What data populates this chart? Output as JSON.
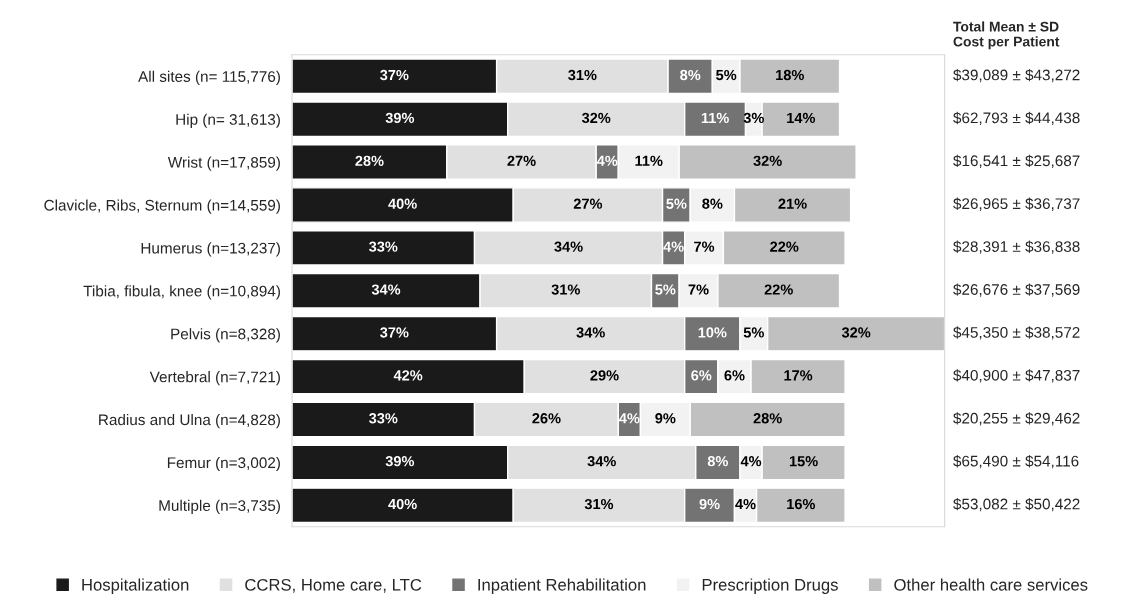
{
  "chart_data": {
    "type": "bar",
    "orientation": "horizontal",
    "stacked": true,
    "legend": "bottom",
    "marker": "square",
    "grid": false,
    "categories": [
      "All sites (n= 115,776)",
      "Hip (n= 31,613)",
      "Wrist (n=17,859)",
      "Clavicle, Ribs, Sternum (n=14,559)",
      "Humerus (n=13,237)",
      "Tibia, fibula, knee (n=10,894)",
      "Pelvis (n=8,328)",
      "Vertebral (n=7,721)",
      "Radius and Ulna (n=4,828)",
      "Femur (n=3,002)",
      "Multiple (n=3,735)"
    ],
    "series": [
      {
        "name": "Hospitalization",
        "color": "#1a1a1a",
        "values": [
          37,
          39,
          28,
          40,
          33,
          34,
          37,
          42,
          33,
          39,
          40
        ],
        "value_labels": [
          "37%",
          "39%",
          "28%",
          "40%",
          "33%",
          "34%",
          "37%",
          "42%",
          "33%",
          "39%",
          "40%"
        ]
      },
      {
        "name": "CCRS, Home care, LTC",
        "color": "#e0e0e0",
        "values": [
          31,
          32,
          27,
          27,
          34,
          31,
          34,
          29,
          26,
          34,
          31
        ],
        "value_labels": [
          "31%",
          "32%",
          "27%",
          "27%",
          "34%",
          "31%",
          "34%",
          "29%",
          "26%",
          "34%",
          "31%"
        ]
      },
      {
        "name": "Inpatient Rehabilitation",
        "color": "#737373",
        "values": [
          8,
          11,
          4,
          5,
          4,
          5,
          10,
          6,
          4,
          8,
          9
        ],
        "value_labels": [
          "8%",
          "11%",
          "4%",
          "5%",
          "4%",
          "5%",
          "10%",
          "6%",
          "4%",
          "8%",
          "9%"
        ]
      },
      {
        "name": "Prescription Drugs",
        "color": "#f2f2f2",
        "values": [
          5,
          3,
          11,
          8,
          7,
          7,
          5,
          6,
          9,
          4,
          4
        ],
        "value_labels": [
          "5%",
          "3%",
          "11%",
          "8%",
          "7%",
          "7%",
          "5%",
          "6%",
          "9%",
          "4%",
          "4%"
        ]
      },
      {
        "name": "Other health care services",
        "color": "#c0c0c0",
        "values": [
          18,
          14,
          32,
          21,
          22,
          22,
          32,
          17,
          28,
          15,
          16
        ],
        "value_labels": [
          "18%",
          "14%",
          "32%",
          "21%",
          "22%",
          "22%",
          "32%",
          "17%",
          "28%",
          "15%",
          "16%"
        ]
      }
    ],
    "annotations": [
      "Total Mean ± SD\nCost per Patient",
      "$39,089 ± $43,272",
      "$62,793 ± $44,438",
      "$16,541 ± $25,687",
      "$26,965 ± $36,737",
      "$28,391 ± $36,838",
      "$26,676 ± $37,569",
      "$45,350 ± $38,572",
      "$40,900 ± $47,837",
      "$20,255 ± $29,462",
      "$65,490 ± $54,116",
      "$53,082 ± $50,422"
    ]
  }
}
